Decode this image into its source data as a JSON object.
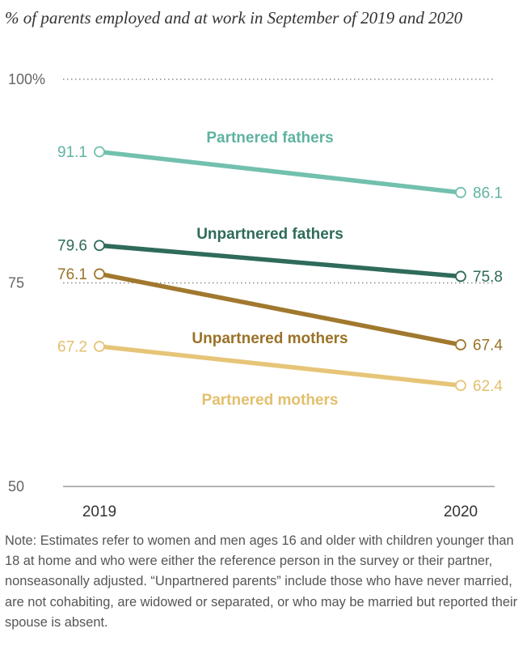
{
  "subtitle": "% of parents employed and at work in September of 2019 and 2020",
  "note": "Note: Estimates refer to women and men ages 16 and older with children younger than 18 at home and who were either the reference person in the survey or their partner, nonseasonally adjusted. “Unpartnered parents” include those who have never married, are not cohabiting, are widowed or separated, or who may be married but reported their spouse is absent.",
  "chart_data": {
    "type": "line",
    "title": "",
    "subtitle": "% of parents employed and at work in September of 2019 and 2020",
    "x": [
      "2019",
      "2020"
    ],
    "ylim": [
      50,
      100
    ],
    "y_ticks": [
      {
        "value": 100,
        "label": "100%"
      },
      {
        "value": 75,
        "label": "75"
      },
      {
        "value": 50,
        "label": "50"
      }
    ],
    "grid": "dotted lines at 100 and 75, solid baseline at 50",
    "series": [
      {
        "name": "Partnered fathers",
        "values": [
          91.1,
          86.1
        ],
        "labels": [
          "91.1",
          "86.1"
        ],
        "color": "#72c0ae"
      },
      {
        "name": "Unpartnered fathers",
        "values": [
          79.6,
          75.8
        ],
        "labels": [
          "79.6",
          "75.8"
        ],
        "color": "#2f6b5a"
      },
      {
        "name": "Unpartnered mothers",
        "values": [
          76.1,
          67.4
        ],
        "labels": [
          "76.1",
          "67.4"
        ],
        "color": "#a0782e"
      },
      {
        "name": "Partnered mothers",
        "values": [
          67.2,
          62.4
        ],
        "labels": [
          "67.2",
          "62.4"
        ],
        "color": "#e6c578"
      }
    ]
  }
}
